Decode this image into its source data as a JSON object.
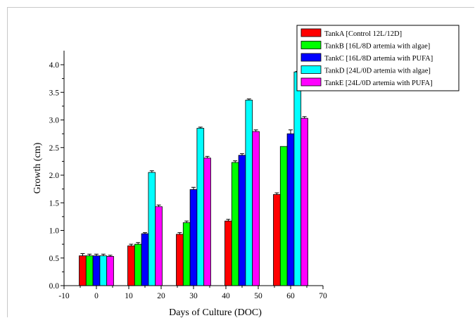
{
  "chart_data": {
    "type": "bar",
    "xlabel": "Days of Culture (DOC)",
    "ylabel": "Growth (cm)",
    "xlim": [
      -10,
      70
    ],
    "ylim": [
      0,
      4.3
    ],
    "x_ticks": [
      "-10",
      "0",
      "10",
      "20",
      "30",
      "40",
      "50",
      "60",
      "70"
    ],
    "y_ticks": [
      "0.0",
      "0.5",
      "1.0",
      "1.5",
      "2.0",
      "2.5",
      "3.0",
      "3.5",
      "4.0"
    ],
    "categories": [
      0,
      15,
      30,
      45,
      60
    ],
    "series": [
      {
        "name": "TankA [Control 12L/12D]",
        "color": "#ff0000",
        "values": [
          0.54,
          0.72,
          0.93,
          1.17,
          1.65
        ],
        "errors": [
          0.04,
          0.03,
          0.03,
          0.03,
          0.03
        ]
      },
      {
        "name": "TankB [16L/8D artemia with algae]",
        "color": "#00ff00",
        "values": [
          0.54,
          0.75,
          1.14,
          2.23,
          2.52
        ],
        "errors": [
          0.03,
          0.03,
          0.03,
          0.03,
          0.0
        ]
      },
      {
        "name": "TankC [16L/8D artemia with PUFA]",
        "color": "#0000ff",
        "values": [
          0.54,
          0.94,
          1.74,
          2.36,
          2.75
        ],
        "errors": [
          0.03,
          0.02,
          0.04,
          0.03,
          0.07
        ]
      },
      {
        "name": "TankD [24L/0D artemia with algae]",
        "color": "#00ffff",
        "values": [
          0.54,
          2.05,
          2.85,
          3.36,
          3.87
        ],
        "errors": [
          0.03,
          0.03,
          0.02,
          0.02,
          0.01
        ]
      },
      {
        "name": "TankE [24L/0D artemia with PUFA]",
        "color": "#ff00ff",
        "values": [
          0.53,
          1.43,
          2.31,
          2.79,
          3.03
        ],
        "errors": [
          0.02,
          0.03,
          0.03,
          0.03,
          0.03
        ]
      }
    ],
    "legend_position": "top-right",
    "grid": false
  }
}
